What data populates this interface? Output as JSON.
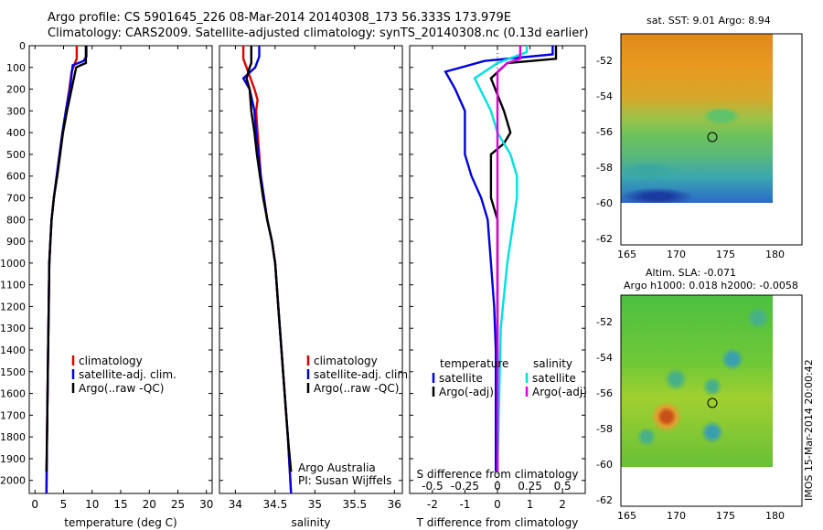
{
  "header": {
    "line1": "Argo profile: CS 5901645_226 08-Mar-2014 20140308_173 56.333S 173.979E",
    "line2": "Climatology: CARS2009. Satellite-adjusted climatology: synTS_20140308.nc (0.13d earlier)"
  },
  "colors": {
    "clim": "#e00000",
    "sat": "#0000e0",
    "argo": "#000000",
    "sat_s": "#00e0e0",
    "argo_s": "#e000e0"
  },
  "chart_data": [
    {
      "type": "line",
      "xlabel": "temperature (deg C)",
      "xticks": [
        "0",
        "5",
        "10",
        "15",
        "20",
        "25",
        "30"
      ],
      "xlim": [
        -1,
        31
      ],
      "ylim": [
        0,
        2060
      ],
      "yticks": [
        "0",
        "100",
        "200",
        "300",
        "400",
        "500",
        "600",
        "700",
        "800",
        "900",
        "1000",
        "1100",
        "1200",
        "1300",
        "1400",
        "1500",
        "1600",
        "1700",
        "1800",
        "1900",
        "2000"
      ],
      "legend": [
        "climatology",
        "satellite-adj. clim.",
        "Argo(..raw -QC)"
      ],
      "series": [
        {
          "name": "climatology",
          "color": "clim",
          "points": [
            [
              7.3,
              0
            ],
            [
              7.3,
              60
            ],
            [
              7.0,
              80
            ],
            [
              6.4,
              120
            ],
            [
              6.0,
              200
            ],
            [
              5.4,
              300
            ],
            [
              4.8,
              400
            ],
            [
              4.3,
              500
            ],
            [
              3.8,
              600
            ],
            [
              3.3,
              700
            ],
            [
              2.9,
              800
            ],
            [
              2.7,
              900
            ],
            [
              2.5,
              1000
            ],
            [
              2.4,
              1200
            ],
            [
              2.3,
              1400
            ],
            [
              2.2,
              1600
            ],
            [
              2.1,
              1800
            ],
            [
              2.0,
              2060
            ]
          ]
        },
        {
          "name": "satellite-adj. clim.",
          "color": "sat",
          "points": [
            [
              9.0,
              0
            ],
            [
              9.0,
              50
            ],
            [
              8.5,
              70
            ],
            [
              6.6,
              90
            ],
            [
              6.1,
              200
            ],
            [
              5.4,
              300
            ],
            [
              4.8,
              400
            ],
            [
              4.3,
              500
            ],
            [
              3.8,
              600
            ],
            [
              3.3,
              700
            ],
            [
              2.9,
              800
            ],
            [
              2.7,
              900
            ],
            [
              2.5,
              1000
            ],
            [
              2.4,
              1200
            ],
            [
              2.3,
              1400
            ],
            [
              2.2,
              1600
            ],
            [
              2.1,
              1800
            ],
            [
              2.0,
              2060
            ]
          ]
        },
        {
          "name": "Argo(..raw -QC)",
          "color": "argo",
          "points": [
            [
              8.9,
              0
            ],
            [
              8.9,
              80
            ],
            [
              8.0,
              90
            ],
            [
              7.2,
              100
            ],
            [
              6.4,
              200
            ],
            [
              5.6,
              300
            ],
            [
              4.9,
              400
            ],
            [
              4.4,
              500
            ],
            [
              3.9,
              600
            ],
            [
              3.3,
              700
            ],
            [
              2.9,
              800
            ],
            [
              2.7,
              900
            ],
            [
              2.5,
              1000
            ],
            [
              2.4,
              1200
            ],
            [
              2.3,
              1400
            ],
            [
              2.2,
              1600
            ],
            [
              2.1,
              1800
            ],
            [
              2.0,
              1960
            ]
          ]
        }
      ]
    },
    {
      "type": "line",
      "xlabel": "salinity",
      "xticks": [
        "34",
        "34.5",
        "35",
        "35.5",
        "36"
      ],
      "xlim": [
        33.8,
        36.1
      ],
      "ylim": [
        0,
        2060
      ],
      "legend": [
        "climatology",
        "satellite-adj. clim.",
        "Argo(..raw -QC)"
      ],
      "annotation": [
        "Argo Australia",
        "PI: Susan Wijffels"
      ],
      "series": [
        {
          "name": "climatology",
          "color": "clim",
          "points": [
            [
              34.1,
              0
            ],
            [
              34.1,
              60
            ],
            [
              34.14,
              100
            ],
            [
              34.24,
              200
            ],
            [
              34.28,
              250
            ],
            [
              34.26,
              300
            ],
            [
              34.28,
              400
            ],
            [
              34.3,
              500
            ],
            [
              34.32,
              600
            ],
            [
              34.36,
              700
            ],
            [
              34.4,
              800
            ],
            [
              34.46,
              900
            ],
            [
              34.5,
              1000
            ],
            [
              34.54,
              1200
            ],
            [
              34.58,
              1400
            ],
            [
              34.62,
              1600
            ],
            [
              34.66,
              1800
            ],
            [
              34.7,
              2060
            ]
          ]
        },
        {
          "name": "satellite-adj. clim.",
          "color": "sat",
          "points": [
            [
              34.3,
              0
            ],
            [
              34.3,
              50
            ],
            [
              34.25,
              100
            ],
            [
              34.1,
              150
            ],
            [
              34.18,
              200
            ],
            [
              34.24,
              300
            ],
            [
              34.26,
              400
            ],
            [
              34.29,
              500
            ],
            [
              34.32,
              600
            ],
            [
              34.36,
              700
            ],
            [
              34.4,
              800
            ],
            [
              34.46,
              900
            ],
            [
              34.5,
              1000
            ],
            [
              34.54,
              1200
            ],
            [
              34.58,
              1400
            ],
            [
              34.62,
              1600
            ],
            [
              34.66,
              1800
            ],
            [
              34.7,
              2060
            ]
          ]
        },
        {
          "name": "Argo(..raw -QC)",
          "color": "argo",
          "points": [
            [
              34.2,
              0
            ],
            [
              34.2,
              80
            ],
            [
              34.18,
              100
            ],
            [
              34.14,
              150
            ],
            [
              34.18,
              200
            ],
            [
              34.2,
              300
            ],
            [
              34.24,
              400
            ],
            [
              34.27,
              500
            ],
            [
              34.31,
              600
            ],
            [
              34.35,
              700
            ],
            [
              34.4,
              800
            ],
            [
              34.46,
              900
            ],
            [
              34.5,
              1000
            ],
            [
              34.54,
              1200
            ],
            [
              34.58,
              1400
            ],
            [
              34.62,
              1600
            ],
            [
              34.66,
              1800
            ],
            [
              34.7,
              1960
            ]
          ]
        }
      ]
    },
    {
      "type": "line",
      "xlabel": "T difference from climatology",
      "xlabel_top": "S difference from climatology",
      "xticks": [
        "-2",
        "-1",
        "0",
        "1",
        "2"
      ],
      "xticks_top": [
        "-0.5",
        "-0.25",
        "0",
        "0.25",
        "0.5"
      ],
      "xlim": [
        -2.7,
        2.7
      ],
      "ylim": [
        0,
        2060
      ],
      "legend": {
        "temperature": "temperature",
        "salinity": "salinity",
        "sat": "satellite",
        "argo": "Argo(-adj)"
      },
      "series": [
        {
          "name": "satellite",
          "color": "sat",
          "points": [
            [
              1.7,
              0
            ],
            [
              1.7,
              40
            ],
            [
              -0.4,
              70
            ],
            [
              -1.6,
              120
            ],
            [
              -1.3,
              200
            ],
            [
              -1.0,
              300
            ],
            [
              -1.0,
              400
            ],
            [
              -1.0,
              500
            ],
            [
              -0.8,
              600
            ],
            [
              -0.5,
              700
            ],
            [
              -0.3,
              800
            ],
            [
              -0.2,
              1000
            ],
            [
              -0.1,
              1200
            ],
            [
              -0.05,
              1400
            ],
            [
              -0.05,
              1960
            ]
          ]
        },
        {
          "name": "Argo(-adj)",
          "color": "argo",
          "points": [
            [
              1.8,
              0
            ],
            [
              1.8,
              60
            ],
            [
              0.3,
              80
            ],
            [
              -0.2,
              150
            ],
            [
              0.2,
              300
            ],
            [
              0.4,
              400
            ],
            [
              0.2,
              450
            ],
            [
              -0.2,
              500
            ],
            [
              -0.2,
              600
            ],
            [
              -0.2,
              700
            ],
            [
              0.0,
              800
            ],
            [
              0.0,
              1000
            ],
            [
              0.0,
              1960
            ]
          ]
        },
        {
          "name": "satellite",
          "color": "sat_s",
          "points": [
            [
              0.9,
              0
            ],
            [
              0.9,
              30
            ],
            [
              0.0,
              80
            ],
            [
              -0.7,
              150
            ],
            [
              -0.2,
              300
            ],
            [
              0.0,
              400
            ],
            [
              0.4,
              500
            ],
            [
              0.6,
              600
            ],
            [
              0.6,
              700
            ],
            [
              0.5,
              800
            ],
            [
              0.3,
              1000
            ],
            [
              0.1,
              1300
            ],
            [
              0.0,
              1960
            ]
          ]
        },
        {
          "name": "Argo(-adj)",
          "color": "argo_s",
          "points": [
            [
              0.7,
              0
            ],
            [
              0.7,
              60
            ],
            [
              0.3,
              80
            ],
            [
              0.0,
              120
            ],
            [
              0.0,
              1960
            ]
          ]
        }
      ]
    }
  ],
  "map1": {
    "title": "sat. SST: 9.01  Argo: 8.94",
    "yticks": [
      "-52",
      "-54",
      "-56",
      "-58",
      "-60",
      "-62"
    ],
    "xticks": [
      "165",
      "170",
      "175",
      "180"
    ]
  },
  "map2": {
    "title1": "Altim. SLA: -0.071",
    "title2": "Argo h1000: 0.018 h2000: -0.0058",
    "yticks": [
      "-52",
      "-54",
      "-56",
      "-58",
      "-60",
      "-62"
    ],
    "xticks": [
      "165",
      "170",
      "175",
      "180"
    ]
  },
  "footer": {
    "stamp": "IMOS 15-Mar-2014 20:00:42"
  }
}
